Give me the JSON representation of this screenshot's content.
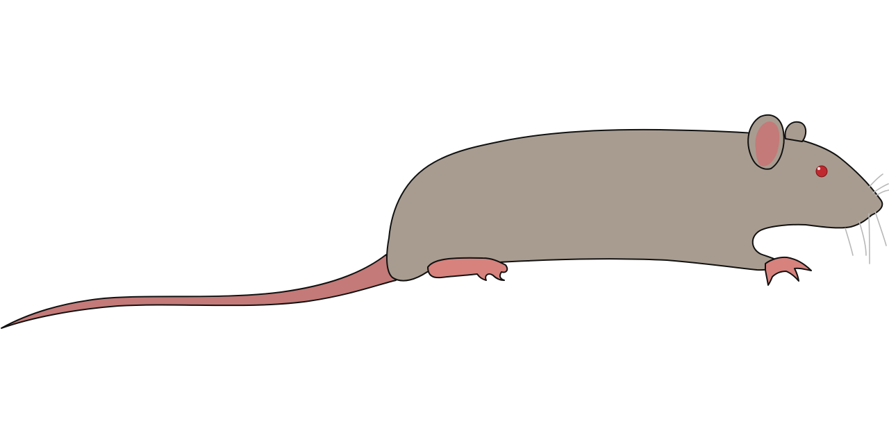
{
  "illustration": {
    "subject": "rat",
    "colors": {
      "background": "#ffffff",
      "fur": "#a89c90",
      "pink": "#c47a78",
      "feet": "#d7827d",
      "eye": "#c0292f",
      "whiskers": "#b8b8b8",
      "outline": "#111111"
    }
  }
}
